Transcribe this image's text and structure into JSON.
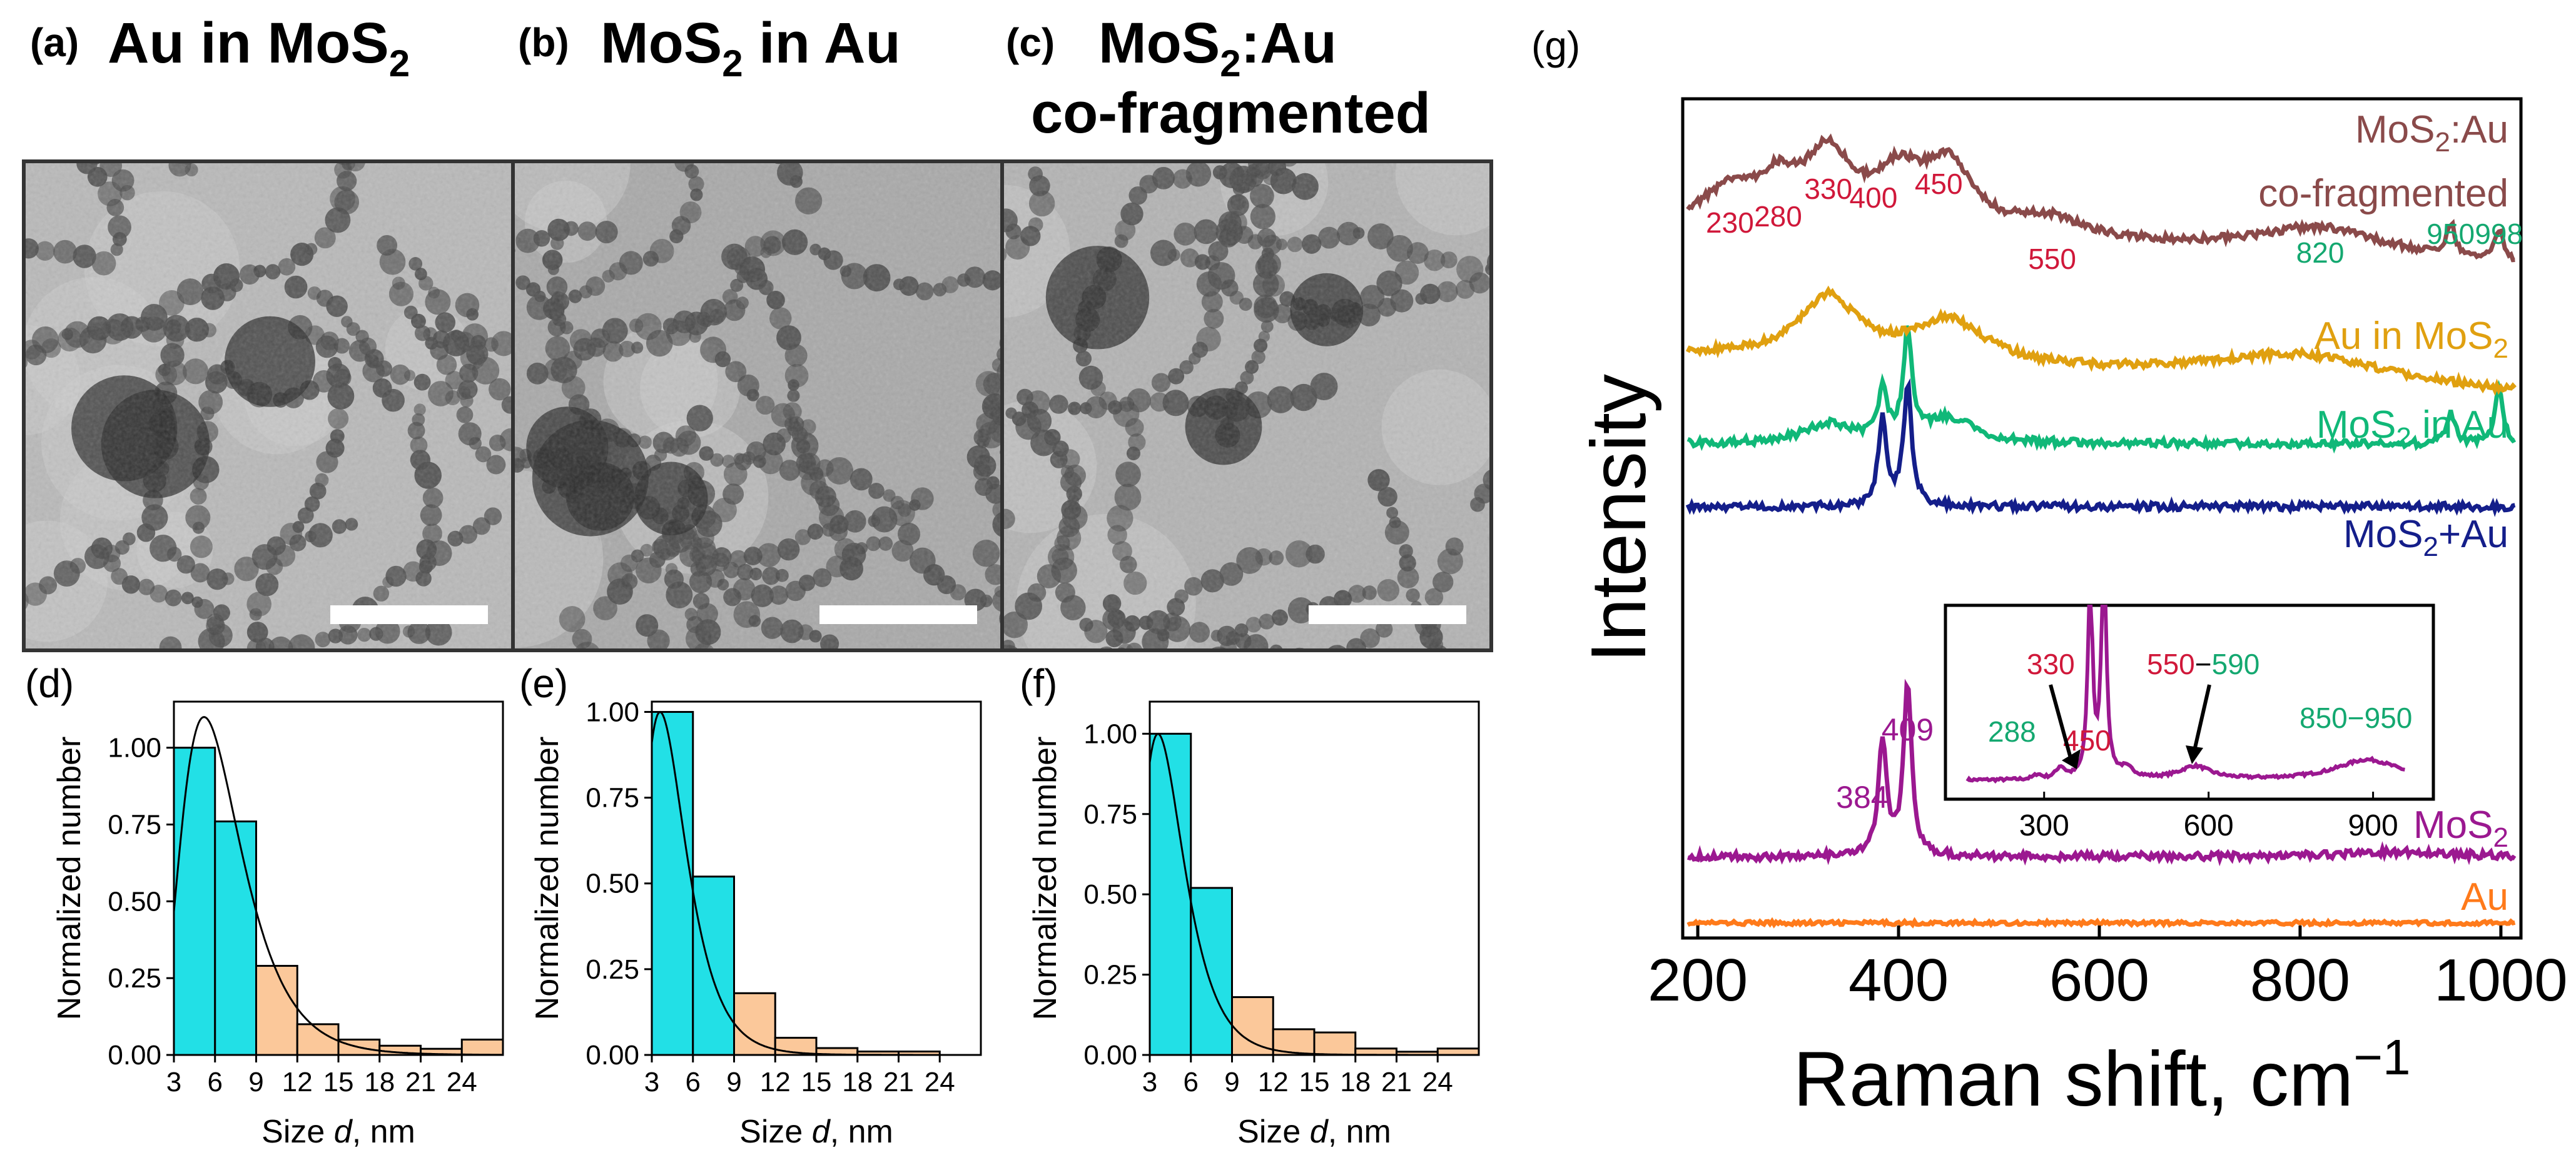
{
  "panels": {
    "a": {
      "letter": "(a)",
      "title_pre": "Au in MoS",
      "title_sub": "2",
      "title_post": ""
    },
    "b": {
      "letter": "(b)",
      "title_pre": "MoS",
      "title_sub": "2",
      "title_post": " in Au"
    },
    "c": {
      "letter": "(c)",
      "title_pre": "MoS",
      "title_sub": "2",
      "title_post": ":Au",
      "title_line2": "co-fragmented"
    },
    "g": {
      "letter": "(g)"
    }
  },
  "colors": {
    "cyan_bar": "#22e0e6",
    "peach_bar": "#fbc89a",
    "red_label": "#d0183a",
    "green_label": "#14a870",
    "purple": "#9b1890",
    "brown": "#8a4a4a",
    "gold": "#e0a010",
    "green": "#10b878",
    "navy": "#141e8a",
    "orange": "#ff7a1a"
  },
  "chart_data": [
    {
      "id": "d",
      "letter": "(d)",
      "type": "bar",
      "xlabel_pre": "Size ",
      "xlabel_var": "d",
      "xlabel_post": ", nm",
      "ylabel": "Normalized number",
      "xlim": [
        3,
        27
      ],
      "ylim": [
        0,
        1.15
      ],
      "xticks": [
        3,
        6,
        9,
        12,
        15,
        18,
        21,
        24
      ],
      "xtick_labels": [
        "3",
        "6",
        "9",
        "12",
        "15",
        "18",
        "21",
        "24"
      ],
      "yticks": [
        0.0,
        0.25,
        0.5,
        0.75,
        1.0
      ],
      "ytick_labels": [
        "0.00",
        "0.25",
        "0.50",
        "0.75",
        "1.00"
      ],
      "bin_width": 3,
      "bin_starts": [
        3,
        6,
        9,
        12,
        15,
        18,
        21,
        24
      ],
      "values": [
        1.0,
        0.76,
        0.29,
        0.1,
        0.05,
        0.03,
        0.02,
        0.05
      ],
      "bar_colors": [
        "cyan",
        "cyan",
        "peach",
        "peach",
        "peach",
        "peach",
        "peach",
        "peach"
      ],
      "fit_curve": {
        "peak_x": 5.2,
        "peak_y": 1.1
      }
    },
    {
      "id": "e",
      "letter": "(e)",
      "type": "bar",
      "xlabel_pre": "Size ",
      "xlabel_var": "d",
      "xlabel_post": ", nm",
      "ylabel": "Normalized number",
      "xlim": [
        3,
        27
      ],
      "ylim": [
        0,
        1.03
      ],
      "xticks": [
        3,
        6,
        9,
        12,
        15,
        18,
        21,
        24
      ],
      "xtick_labels": [
        "3",
        "6",
        "9",
        "12",
        "15",
        "18",
        "21",
        "24"
      ],
      "yticks": [
        0.0,
        0.25,
        0.5,
        0.75,
        1.0
      ],
      "ytick_labels": [
        "0.00",
        "0.25",
        "0.50",
        "0.75",
        "1.00"
      ],
      "bin_width": 3,
      "bin_starts": [
        3,
        6,
        9,
        12,
        15,
        18,
        21,
        24
      ],
      "values": [
        1.0,
        0.52,
        0.18,
        0.05,
        0.02,
        0.01,
        0.01,
        0.0
      ],
      "bar_colors": [
        "cyan",
        "cyan",
        "peach",
        "peach",
        "peach",
        "peach",
        "peach",
        "peach"
      ],
      "fit_curve": {
        "peak_x": 3.6,
        "peak_y": 1.0
      }
    },
    {
      "id": "f",
      "letter": "(f)",
      "type": "bar",
      "xlabel_pre": "Size ",
      "xlabel_var": "d",
      "xlabel_post": ", nm",
      "ylabel": "Normalized number",
      "xlim": [
        3,
        27
      ],
      "ylim": [
        0,
        1.1
      ],
      "xticks": [
        3,
        6,
        9,
        12,
        15,
        18,
        21,
        24
      ],
      "xtick_labels": [
        "3",
        "6",
        "9",
        "12",
        "15",
        "18",
        "21",
        "24"
      ],
      "yticks": [
        0.0,
        0.25,
        0.5,
        0.75,
        1.0
      ],
      "ytick_labels": [
        "0.00",
        "0.25",
        "0.50",
        "0.75",
        "1.00"
      ],
      "bin_width": 3,
      "bin_starts": [
        3,
        6,
        9,
        12,
        15,
        18,
        21,
        24
      ],
      "values": [
        1.0,
        0.52,
        0.18,
        0.08,
        0.07,
        0.02,
        0.01,
        0.02
      ],
      "bar_colors": [
        "cyan",
        "cyan",
        "peach",
        "peach",
        "peach",
        "peach",
        "peach",
        "peach"
      ],
      "fit_curve": {
        "peak_x": 3.6,
        "peak_y": 1.0
      }
    },
    {
      "id": "g",
      "type": "line",
      "xlabel": "Raman shift, cm",
      "xlabel_sup": "−1",
      "ylabel": "Intensity",
      "xlim": [
        185,
        1020
      ],
      "xticks": [
        200,
        400,
        600,
        800,
        1000
      ],
      "xtick_labels": [
        "200",
        "400",
        "600",
        "800",
        "1000"
      ],
      "series": [
        {
          "name": "Au",
          "label": "Au",
          "color": "#ff7a1a",
          "offset": 0.02,
          "peaks": []
        },
        {
          "name": "MoS2",
          "label_pre": "MoS",
          "label_sub": "2",
          "color": "#9b1890",
          "offset": 0.55,
          "peaks": [
            {
              "x": 384,
              "h": 0.9
            },
            {
              "x": 409,
              "h": 1.35
            }
          ]
        },
        {
          "name": "MoS2+Au",
          "label_pre": "MoS",
          "label_sub": "2",
          "label_post": "+Au",
          "color": "#141e8a",
          "offset": 3.35,
          "peaks": [
            {
              "x": 384,
              "h": 0.7
            },
            {
              "x": 409,
              "h": 0.95
            }
          ]
        },
        {
          "name": "MoS2 in Au",
          "label_pre": "MoS",
          "label_sub": "2",
          "label_post": " in Au",
          "color": "#10b878",
          "offset": 3.85,
          "peaks": [
            {
              "x": 384,
              "h": 0.4
            },
            {
              "x": 409,
              "h": 0.85
            },
            {
              "x": 950,
              "h": 0.25
            },
            {
              "x": 998,
              "h": 0.45
            }
          ]
        },
        {
          "name": "Au in MoS2",
          "label_pre": "Au in MoS",
          "label_sub": "2",
          "color": "#e0a010",
          "offset": 4.55,
          "peaks": []
        },
        {
          "name": "MoS2:Au co-fragmented",
          "label_pre": "MoS",
          "label_sub": "2",
          "label_post": ":Au",
          "label_line2": "co-fragmented",
          "color": "#8a4a4a",
          "offset": 5.6,
          "peaks": [
            {
              "x": 950,
              "h": 0.25
            },
            {
              "x": 998,
              "h": 0.25
            }
          ]
        }
      ],
      "annotations_top": [
        {
          "text": "230",
          "x": 232,
          "color": "red"
        },
        {
          "text": "280",
          "x": 280,
          "color": "red"
        },
        {
          "text": "330",
          "x": 330,
          "color": "red"
        },
        {
          "text": "400",
          "x": 375,
          "color": "red"
        },
        {
          "text": "450",
          "x": 440,
          "color": "red"
        },
        {
          "text": "550",
          "x": 553,
          "color": "red"
        },
        {
          "text": "820",
          "x": 820,
          "color": "green"
        },
        {
          "text": "950",
          "x": 950,
          "color": "green"
        },
        {
          "text": "998",
          "x": 998,
          "color": "green"
        }
      ],
      "mos2_peak_labels": [
        {
          "text": "384",
          "x": 370
        },
        {
          "text": "409",
          "x": 409
        }
      ],
      "inset": {
        "xlim": [
          120,
          1010
        ],
        "xticks": [
          300,
          600,
          900
        ],
        "xtick_labels": [
          "300",
          "600",
          "900"
        ],
        "labels": {
          "l288": "288",
          "l330": "330",
          "l450": "450",
          "l550a": "550",
          "l550dash": "−",
          "l550b": "590",
          "l850": "850−950"
        }
      }
    }
  ]
}
